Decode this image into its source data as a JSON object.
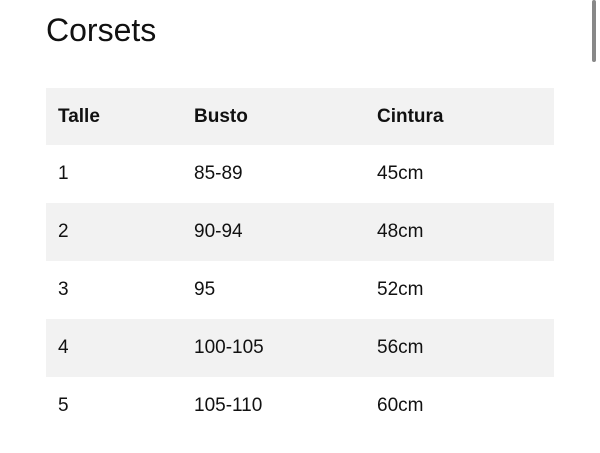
{
  "title": "Corsets",
  "table": {
    "headers": [
      "Talle",
      "Busto",
      "Cintura"
    ],
    "rows": [
      [
        "1",
        "85-89",
        "45cm"
      ],
      [
        "2",
        "90-94",
        "48cm"
      ],
      [
        "3",
        "95",
        "52cm"
      ],
      [
        "4",
        "100-105",
        "56cm"
      ],
      [
        "5",
        "105-110",
        "60cm"
      ]
    ]
  }
}
